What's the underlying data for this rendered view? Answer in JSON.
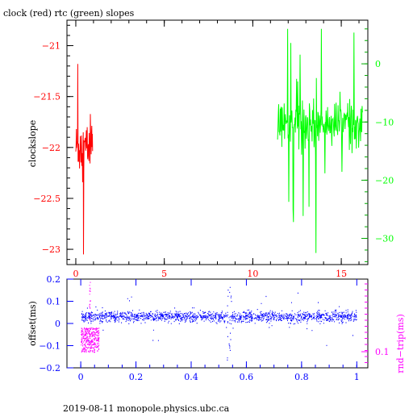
{
  "title": "clock (red) rtc (green) slopes",
  "footer": "2019-08-11 monopole.physics.ubc.ca",
  "chart_data": [
    {
      "id": "slopes",
      "type": "line",
      "title": "clock (red) rtc (green) slopes",
      "xlim": [
        -0.5,
        16.5
      ],
      "x_ticks": [
        0,
        5,
        10,
        15
      ],
      "x_tick_color": "#ff0000",
      "left_axis": {
        "label": "clockslope",
        "lim": [
          -23.15,
          -20.75
        ],
        "ticks": [
          -21,
          -21.5,
          -22,
          -22.5,
          -23
        ],
        "tick_labels": [
          "−21",
          "−21.5",
          "−22",
          "−22.5",
          "−23"
        ],
        "color": "#ff0000"
      },
      "right_axis": {
        "label": "",
        "lim": [
          -34.5,
          7.5
        ],
        "ticks": [
          0,
          -10,
          -20,
          -30
        ],
        "tick_labels": [
          "0",
          "−10",
          "−20",
          "−30"
        ],
        "color": "#00ff00"
      },
      "series": [
        {
          "axis": "left",
          "color": "#ff0000",
          "x_range": [
            0,
            0.95
          ],
          "y_center": -22.0,
          "spread": 0.13,
          "y_min": -23.05,
          "y_max": -21.18
        },
        {
          "axis": "right",
          "color": "#00ff00",
          "x_range": [
            11.4,
            16.2
          ],
          "y_center": -10.2,
          "spread": 1.8,
          "y_min": -32.5,
          "y_max": 6.0
        }
      ]
    },
    {
      "id": "offset",
      "type": "scatter",
      "xlim": [
        -0.05,
        1.04
      ],
      "x_ticks": [
        0,
        0.2,
        0.4,
        0.6,
        0.8,
        1
      ],
      "x_tick_labels": [
        "0",
        "0.2",
        "0.4",
        "0.6",
        "0.8",
        "1"
      ],
      "x_tick_color": "#0000ff",
      "left_axis": {
        "label": "offset(ms)",
        "lim": [
          -0.2,
          0.2
        ],
        "ticks": [
          0.2,
          0.1,
          0,
          -0.1,
          -0.2
        ],
        "tick_labels": [
          "0.2",
          "0.1",
          "0",
          "−0.1",
          "−0.2"
        ],
        "color": "#0000ff"
      },
      "right_axis": {
        "label": "rnd−trip(ms)",
        "scale": "log",
        "ticks": [
          0.1
        ],
        "tick_labels": [
          "0.1"
        ],
        "color": "#ff00ff"
      },
      "series": [
        {
          "name": "offset",
          "color": "#0000ff",
          "x_range": [
            0,
            1
          ],
          "y_center": 0.03,
          "spread": 0.012
        },
        {
          "name": "rnd-trip",
          "color": "#ff00ff",
          "x_range": [
            0,
            0.065
          ],
          "y_center": -0.07,
          "spread": 0.05
        }
      ]
    }
  ]
}
